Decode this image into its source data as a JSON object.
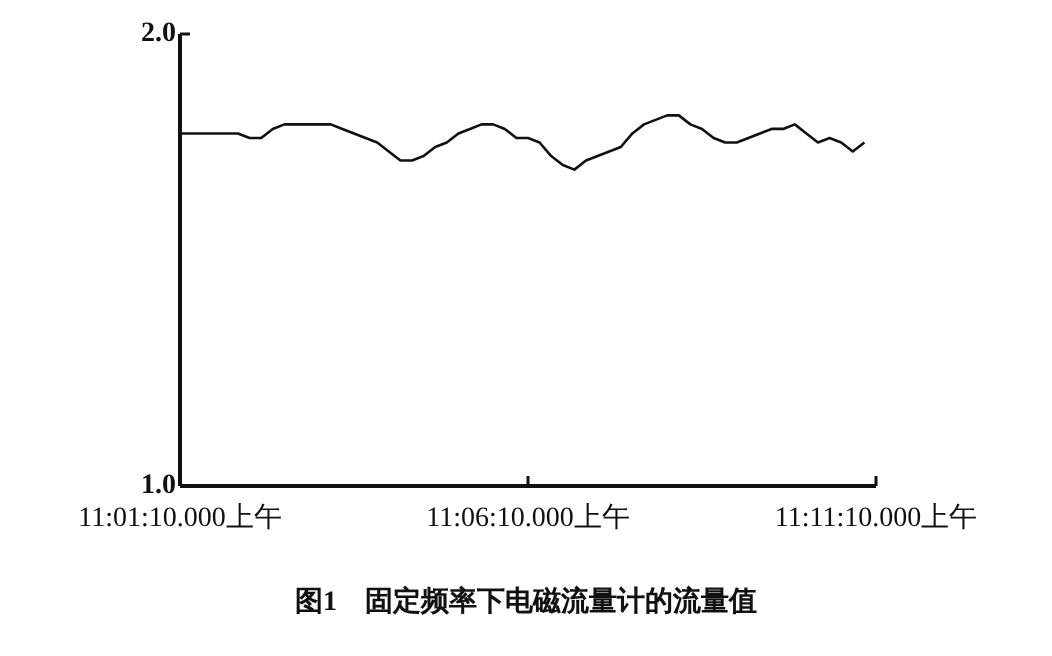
{
  "chart_data": {
    "type": "line",
    "title": "图1　固定频率下电磁流量计的流量值",
    "color": "#111111",
    "categories": [
      "11:01:10.000上午",
      null,
      null,
      null,
      null,
      null,
      null,
      null,
      null,
      null,
      null,
      null,
      null,
      null,
      null,
      null,
      null,
      null,
      null,
      null,
      null,
      null,
      null,
      null,
      null,
      null,
      null,
      null,
      null,
      null,
      "11:06:10.000上午",
      null,
      null,
      null,
      null,
      null,
      null,
      null,
      null,
      null,
      null,
      null,
      null,
      null,
      null,
      null,
      null,
      null,
      null,
      null,
      null,
      null,
      null,
      null,
      null,
      null,
      null,
      null,
      null,
      null,
      "11:11:10.000上午"
    ],
    "values": [
      1.78,
      1.78,
      1.78,
      1.78,
      1.78,
      1.78,
      1.77,
      1.77,
      1.79,
      1.8,
      1.8,
      1.8,
      1.8,
      1.8,
      1.79,
      1.78,
      1.77,
      1.76,
      1.74,
      1.72,
      1.72,
      1.73,
      1.75,
      1.76,
      1.78,
      1.79,
      1.8,
      1.8,
      1.79,
      1.77,
      1.77,
      1.76,
      1.73,
      1.71,
      1.7,
      1.72,
      1.73,
      1.74,
      1.75,
      1.78,
      1.8,
      1.81,
      1.82,
      1.82,
      1.8,
      1.79,
      1.77,
      1.76,
      1.76,
      1.77,
      1.78,
      1.79,
      1.79,
      1.8,
      1.78,
      1.76,
      1.77,
      1.76,
      1.74,
      1.76,
      null
    ],
    "ylim": [
      1.0,
      2.0
    ],
    "yticks": [
      {
        "value": 1.0,
        "label": "1.0"
      },
      {
        "value": 2.0,
        "label": "2.0"
      }
    ]
  }
}
